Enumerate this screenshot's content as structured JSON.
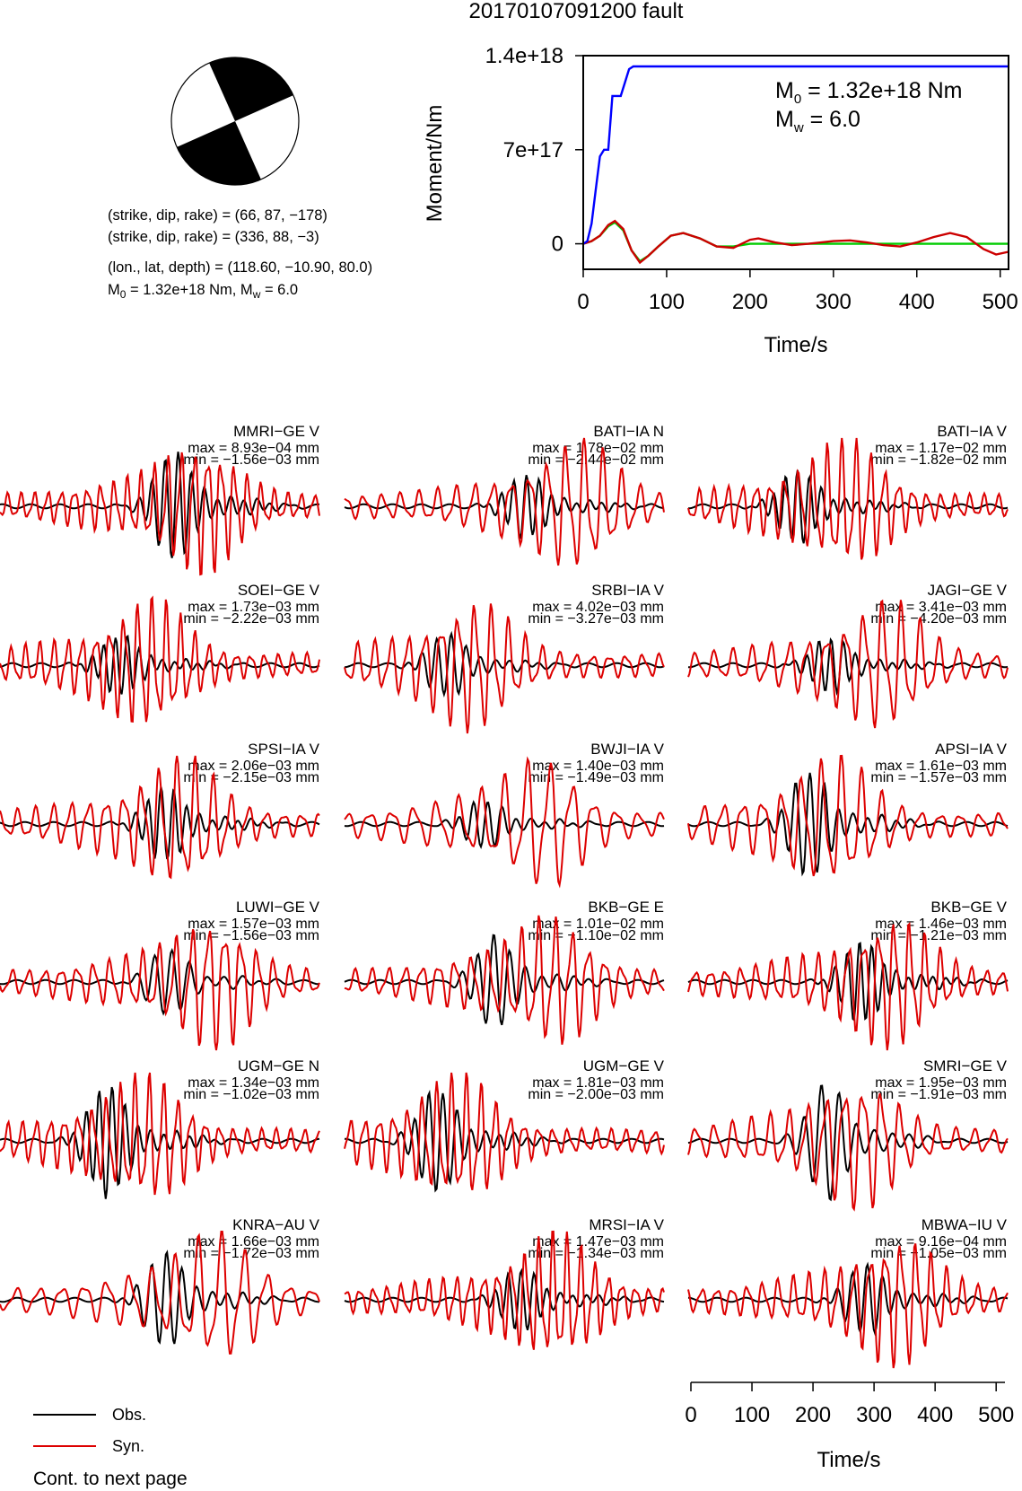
{
  "title": "20170107091200 fault",
  "mechanism": {
    "line1": "(strike, dip, rake) = (66, 87, −178)",
    "line2": "(strike, dip, rake) = (336, 88, −3)",
    "line3": "(lon., lat, depth) = (118.60, −10.90, 80.0)",
    "line4_a": "M",
    "line4_sub": "0",
    "line4_b": " = 1.32e+18 Nm, M",
    "line4_sub2": "w",
    "line4_c": " = 6.0"
  },
  "moment_plot": {
    "ylabel": "Moment/Nm",
    "xlabel": "Time/s",
    "yticks": [
      "0",
      "7e+17",
      "1.4e+18"
    ],
    "xticks": [
      "0",
      "100",
      "200",
      "300",
      "400",
      "500"
    ],
    "m0_a": "M",
    "m0_sub": "0",
    "m0_b": " = 1.32e+18 Nm",
    "mw_a": "M",
    "mw_sub": "w",
    "mw_b": " = 6.0"
  },
  "chart_data": [
    {
      "type": "line",
      "name": "moment-rate",
      "xlabel": "Time/s",
      "ylabel": "Moment/Nm",
      "xlim": [
        0,
        510
      ],
      "ylim": [
        -1.9e+17,
        1.4e+18
      ],
      "yticks": [
        0,
        7e+17,
        1.4e+18
      ],
      "xticks": [
        0,
        100,
        200,
        300,
        400,
        500
      ],
      "series": [
        {
          "color": "#0000ff",
          "x": [
            0,
            5,
            10,
            15,
            20,
            25,
            30,
            35,
            40,
            45,
            50,
            55,
            60,
            510
          ],
          "y": [
            0,
            2e+16,
            1.5e+17,
            4e+17,
            6.5e+17,
            7e+17,
            7e+17,
            1.1e+18,
            1.1e+18,
            1.1e+18,
            1.2e+18,
            1.3e+18,
            1.32e+18,
            1.32e+18
          ]
        },
        {
          "color": "#00cc00",
          "x": [
            0,
            10,
            20,
            30,
            38,
            48,
            58,
            68,
            78,
            90,
            105,
            120,
            140,
            160,
            180,
            200,
            510
          ],
          "y": [
            0,
            2e+16,
            6e+16,
            1.3e+17,
            1.6e+17,
            1e+17,
            -5e+16,
            -1.3e+17,
            -9e+16,
            -2e+16,
            6e+16,
            8e+16,
            4e+16,
            -2e+16,
            -2e+16,
            0,
            0
          ]
        },
        {
          "color": "#cc0000",
          "x": [
            0,
            10,
            20,
            30,
            38,
            48,
            58,
            68,
            78,
            90,
            105,
            120,
            140,
            160,
            180,
            200,
            210,
            230,
            250,
            270,
            300,
            320,
            340,
            360,
            380,
            400,
            420,
            440,
            460,
            480,
            495,
            510
          ],
          "y": [
            0,
            2e+16,
            6e+16,
            1.4e+17,
            1.7e+17,
            1.1e+17,
            -5e+16,
            -1.4e+17,
            -9e+16,
            -2e+16,
            6e+16,
            8e+16,
            4e+16,
            -2e+16,
            -3e+16,
            3e+16,
            4e+16,
            1e+16,
            -1e+16,
            0,
            2e+16,
            2.5e+16,
            1e+16,
            -1e+16,
            -2e+16,
            1e+16,
            5e+16,
            8e+16,
            5e+16,
            -4e+16,
            -8e+16,
            -6e+16
          ]
        }
      ]
    },
    {
      "type": "line",
      "name": "waveform-time-axis",
      "xlabel": "Time/s",
      "xticks": [
        0,
        100,
        200,
        300,
        400,
        500
      ],
      "xlim": [
        0,
        510
      ]
    }
  ],
  "stations": [
    {
      "name": "MMRI−GE V",
      "max": "max = 8.93e−04 mm",
      "min": "min = −1.56e−03 mm"
    },
    {
      "name": "BATI−IA N",
      "max": "max = 1.78e−02 mm",
      "min": "min = −2.44e−02 mm"
    },
    {
      "name": "BATI−IA V",
      "max": "max = 1.17e−02 mm",
      "min": "min = −1.82e−02 mm"
    },
    {
      "name": "SOEI−GE V",
      "max": "max = 1.73e−03 mm",
      "min": "min = −2.22e−03 mm"
    },
    {
      "name": "SRBI−IA V",
      "max": "max = 4.02e−03 mm",
      "min": "min = −3.27e−03 mm"
    },
    {
      "name": "JAGI−GE V",
      "max": "max = 3.41e−03 mm",
      "min": "min = −4.20e−03 mm"
    },
    {
      "name": "SPSI−IA V",
      "max": "max = 2.06e−03 mm",
      "min": "min = −2.15e−03 mm"
    },
    {
      "name": "BWJI−IA V",
      "max": "max = 1.40e−03 mm",
      "min": "min = −1.49e−03 mm"
    },
    {
      "name": "APSI−IA V",
      "max": "max = 1.61e−03 mm",
      "min": "min = −1.57e−03 mm"
    },
    {
      "name": "LUWI−GE V",
      "max": "max = 1.57e−03 mm",
      "min": "min = −1.56e−03 mm"
    },
    {
      "name": "BKB−GE E",
      "max": "max = 1.01e−02 mm",
      "min": "min = −1.10e−02 mm"
    },
    {
      "name": "BKB−GE V",
      "max": "max = 1.46e−03 mm",
      "min": "min = −1.21e−03 mm"
    },
    {
      "name": "UGM−GE N",
      "max": "max = 1.34e−03 mm",
      "min": "min = −1.02e−03 mm"
    },
    {
      "name": "UGM−GE V",
      "max": "max = 1.81e−03 mm",
      "min": "min = −2.00e−03 mm"
    },
    {
      "name": "SMRI−GE V",
      "max": "max = 1.95e−03 mm",
      "min": "min = −1.91e−03 mm"
    },
    {
      "name": "KNRA−AU V",
      "max": "max = 1.66e−03 mm",
      "min": "min = −1.72e−03 mm"
    },
    {
      "name": "MRSI−IA V",
      "max": "max = 1.47e−03 mm",
      "min": "min = −1.34e−03 mm"
    },
    {
      "name": "MBWA−IU V",
      "max": "max = 9.16e−04 mm",
      "min": "min = −1.05e−03 mm"
    }
  ],
  "legend": {
    "obs": "Obs.",
    "syn": "Syn.",
    "obs_color": "#000000",
    "syn_color": "#dd0000"
  },
  "footer": "Cont. to next page"
}
